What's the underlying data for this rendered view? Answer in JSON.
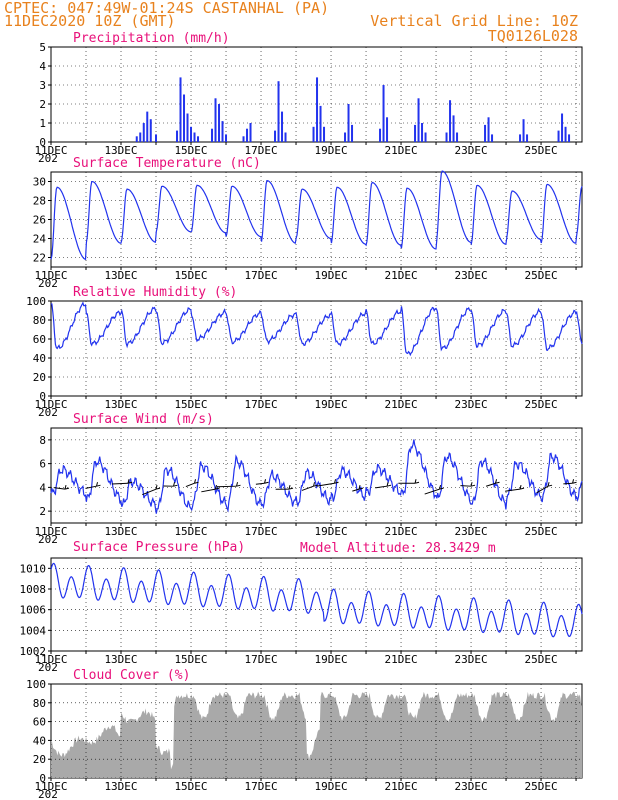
{
  "header": {
    "line1_left": "CPTEC:  047:49W-01:24S  CASTANHAL (PA)",
    "line2_left": "11DEC2020 10Z (GMT)",
    "line1_right": "Vertical Grid Line: 10Z",
    "line2_right": "TQ0126L028",
    "model_altitude": "Model Altitude: 28.3429 m"
  },
  "colors": {
    "header": "#e8821e",
    "title": "#e8107a",
    "line": "#2233ee",
    "cloud": "#a9a9a9"
  },
  "x_axis": {
    "labels": [
      "11DEC",
      "13DEC",
      "15DEC",
      "17DEC",
      "19DEC",
      "21DEC",
      "23DEC",
      "25DEC"
    ],
    "days": 15.17,
    "year_stub": "202"
  },
  "chart_data": [
    {
      "id": "precip",
      "type": "bar",
      "title": "Precipitation (mm/h)",
      "ylim": [
        0,
        5
      ],
      "yticks": [
        "0",
        "1",
        "2",
        "3",
        "4",
        "5"
      ],
      "x_days": [
        2.45,
        2.55,
        2.65,
        2.75,
        2.85,
        3.0,
        3.6,
        3.7,
        3.8,
        3.9,
        4.0,
        4.1,
        4.2,
        4.6,
        4.7,
        4.8,
        4.9,
        5.0,
        5.5,
        5.6,
        5.7,
        6.4,
        6.5,
        6.6,
        6.7,
        7.5,
        7.6,
        7.7,
        7.8,
        8.4,
        8.5,
        8.6,
        9.4,
        9.5,
        9.6,
        10.4,
        10.5,
        10.6,
        10.7,
        11.3,
        11.4,
        11.5,
        11.6,
        12.4,
        12.5,
        12.6,
        13.4,
        13.5,
        13.6,
        14.5,
        14.6,
        14.7,
        14.8
      ],
      "values": [
        0.3,
        0.5,
        1.0,
        1.6,
        1.2,
        0.4,
        0.6,
        3.4,
        2.5,
        1.5,
        0.8,
        0.5,
        0.3,
        0.7,
        2.3,
        2.0,
        1.1,
        0.4,
        0.3,
        0.7,
        1.0,
        0.6,
        3.2,
        1.6,
        0.5,
        0.8,
        3.4,
        1.9,
        0.8,
        0.5,
        2.0,
        0.9,
        0.7,
        3.0,
        1.3,
        0.9,
        2.3,
        1.0,
        0.5,
        0.5,
        2.2,
        1.4,
        0.5,
        0.9,
        1.3,
        0.4,
        0.4,
        1.2,
        0.4,
        0.6,
        1.5,
        0.8,
        0.4
      ],
      "ylabel": "",
      "xlabel": ""
    },
    {
      "id": "temp",
      "type": "line",
      "title": "Surface Temperature (nC)",
      "ylim": [
        21,
        31
      ],
      "yticks": [
        "22",
        "24",
        "26",
        "28",
        "30"
      ],
      "daily_min": [
        21.8,
        23.5,
        23.6,
        24.7,
        24.6,
        24.2,
        23.5,
        24.0,
        23.4,
        23.3,
        22.9,
        23.6,
        23.4,
        23.9,
        23.5,
        24.2
      ],
      "daily_max": [
        29.4,
        30.0,
        29.2,
        29.5,
        29.6,
        29.5,
        30.1,
        29.2,
        29.4,
        29.9,
        29.3,
        31.1,
        29.6,
        29.0,
        29.7,
        29.5
      ]
    },
    {
      "id": "rh",
      "type": "line",
      "title": "Relative Humidity (%)",
      "ylim": [
        0,
        100
      ],
      "yticks": [
        "0",
        "20",
        "40",
        "60",
        "80",
        "100"
      ],
      "daily_min": [
        50,
        55,
        55,
        56,
        60,
        57,
        58,
        55,
        55,
        55,
        44,
        50,
        53,
        53,
        50,
        55
      ],
      "daily_max": [
        97,
        88,
        92,
        91,
        88,
        87,
        86,
        85,
        87,
        89,
        93,
        92,
        90,
        89,
        88,
        90
      ]
    },
    {
      "id": "wind",
      "type": "line",
      "title": "Surface Wind (m/s)",
      "ylim": [
        1,
        9
      ],
      "yticks": [
        "2",
        "4",
        "6",
        "8"
      ],
      "daily_min": [
        3.5,
        3.0,
        2.5,
        2.2,
        2.6,
        2.5,
        2.7,
        2.8,
        3.2,
        3.6,
        3.4,
        3.0,
        2.6,
        3.2,
        3.2,
        3.3
      ],
      "daily_max": [
        5.5,
        6.2,
        4.5,
        5.5,
        5.8,
        6.2,
        5.0,
        5.2,
        5.4,
        5.6,
        7.6,
        6.6,
        6.2,
        6.0,
        6.6,
        6.0
      ],
      "arrows_days": [
        0.4,
        1.3,
        2.2,
        3.0,
        3.5,
        4.1,
        4.7,
        5.3,
        6.1,
        6.8,
        7.5,
        8.1,
        8.8,
        9.6,
        10.4,
        11.1,
        12.0,
        12.7,
        13.4,
        14.2,
        14.9
      ]
    },
    {
      "id": "pressure",
      "type": "line",
      "title": "Surface Pressure (hPa)",
      "ylim": [
        1002,
        1011
      ],
      "yticks": [
        "1002",
        "1004",
        "1006",
        "1008",
        "1010"
      ]
    },
    {
      "id": "cloud",
      "type": "area",
      "title": "Cloud Cover (%)",
      "ylim": [
        0,
        100
      ],
      "yticks": [
        "0",
        "20",
        "40",
        "60",
        "80",
        "100"
      ]
    }
  ]
}
